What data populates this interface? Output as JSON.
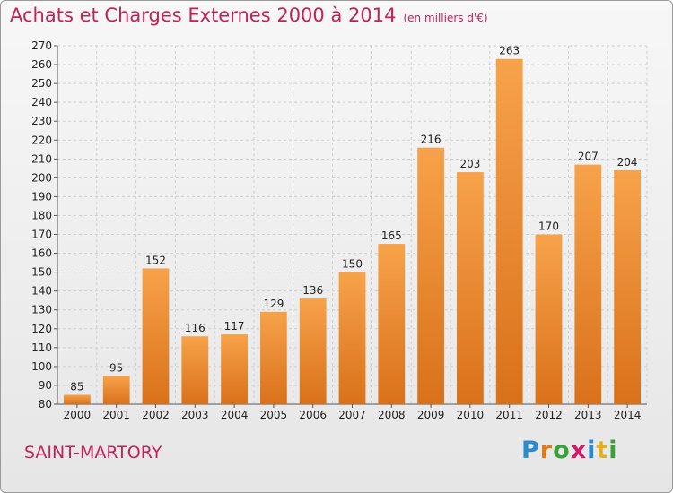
{
  "title": "Achats et Charges Externes 2000 à 2014",
  "unit": "(en milliers d'€)",
  "commune": "SAINT-MARTORY",
  "logo": {
    "letters": [
      "P",
      "r",
      "o",
      "x",
      "i",
      "t",
      "i"
    ],
    "colors": [
      "#2a8bd0",
      "#e07a1a",
      "#3aa13a",
      "#d01c6a",
      "#2a8bd0",
      "#e0b020",
      "#3aa13a"
    ]
  },
  "chart_data": {
    "type": "bar",
    "title": "Achats et Charges Externes 2000 à 2014",
    "categories": [
      "2000",
      "2001",
      "2002",
      "2003",
      "2004",
      "2005",
      "2006",
      "2007",
      "2008",
      "2009",
      "2010",
      "2011",
      "2012",
      "2013",
      "2014"
    ],
    "values": [
      85,
      95,
      152,
      116,
      117,
      129,
      136,
      150,
      165,
      216,
      203,
      263,
      170,
      207,
      204
    ],
    "ylim": [
      80,
      270
    ],
    "yticks": [
      80,
      90,
      100,
      110,
      120,
      130,
      140,
      150,
      160,
      170,
      180,
      190,
      200,
      210,
      220,
      230,
      240,
      250,
      260,
      270
    ],
    "grid": true,
    "bar_color": "#f0902e"
  }
}
